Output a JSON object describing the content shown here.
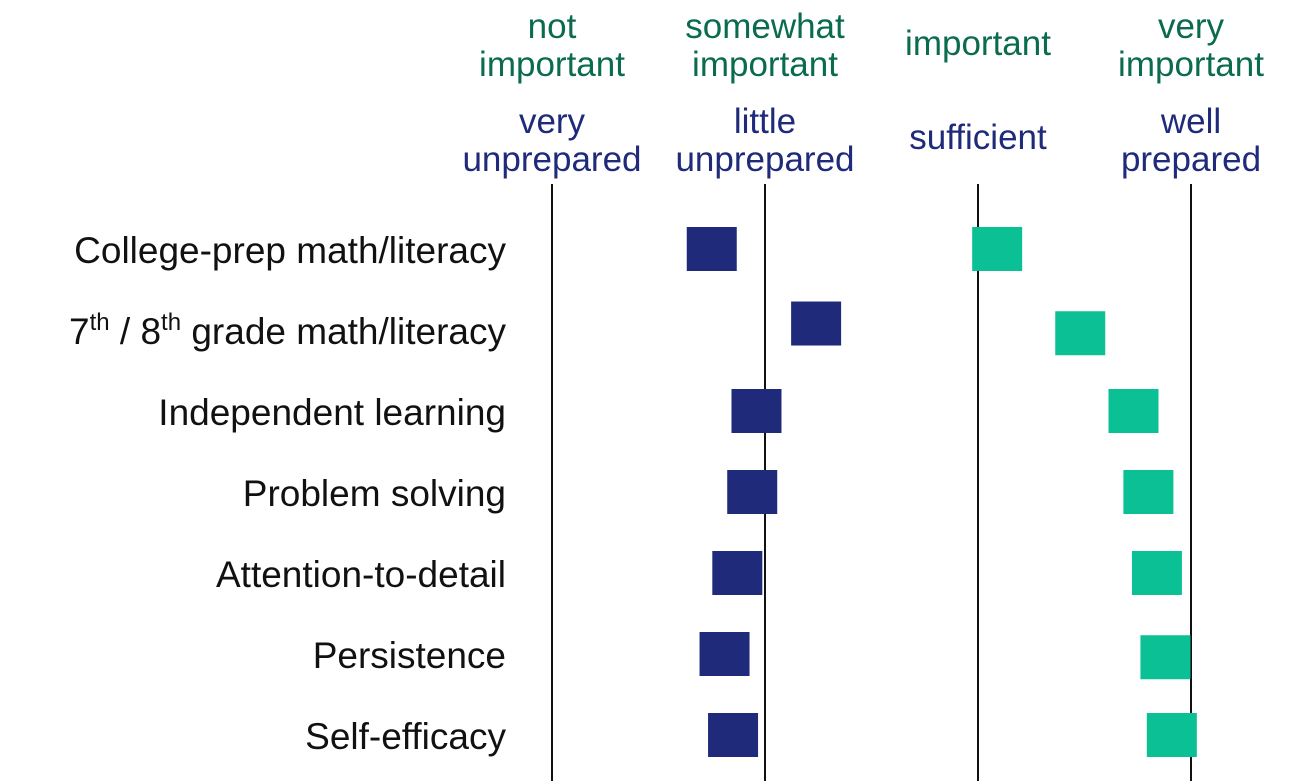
{
  "chart_data": {
    "type": "scatter",
    "title": "",
    "xlabel": "",
    "ylabel": "",
    "xlim": [
      1,
      4
    ],
    "importance_scale": {
      "color": "#0b6b4f",
      "ticks": [
        {
          "value": 1,
          "lines": [
            "not",
            "important"
          ]
        },
        {
          "value": 2,
          "lines": [
            "somewhat",
            "important"
          ]
        },
        {
          "value": 3,
          "lines": [
            "important"
          ]
        },
        {
          "value": 4,
          "lines": [
            "very",
            "important"
          ]
        }
      ]
    },
    "preparedness_scale": {
      "color": "#1f2a7a",
      "ticks": [
        {
          "value": 1,
          "lines": [
            "very",
            "unprepared"
          ]
        },
        {
          "value": 2,
          "lines": [
            "little",
            "unprepared"
          ]
        },
        {
          "value": 3,
          "lines": [
            "sufficient"
          ]
        },
        {
          "value": 4,
          "lines": [
            "well",
            "prepared"
          ]
        }
      ]
    },
    "categories": [
      {
        "parts": [
          {
            "t": "College-prep math/literacy"
          }
        ]
      },
      {
        "parts": [
          {
            "t": "7"
          },
          {
            "t": "th",
            "sup": true
          },
          {
            "t": " / 8"
          },
          {
            "t": "th",
            "sup": true
          },
          {
            "t": " grade math/literacy"
          }
        ]
      },
      {
        "parts": [
          {
            "t": "Independent learning"
          }
        ]
      },
      {
        "parts": [
          {
            "t": "Problem solving"
          }
        ]
      },
      {
        "parts": [
          {
            "t": "Attention-to-detail"
          }
        ]
      },
      {
        "parts": [
          {
            "t": "Persistence"
          }
        ]
      },
      {
        "parts": [
          {
            "t": "Self-efficacy"
          }
        ]
      }
    ],
    "series": [
      {
        "color": "#1f2a7a",
        "values": [
          1.75,
          2.24,
          1.96,
          1.94,
          1.87,
          1.81,
          1.85
        ],
        "row_offsets": [
          0,
          -0.08,
          0,
          0,
          0,
          0,
          0
        ]
      },
      {
        "color": "#0bc095",
        "values": [
          3.09,
          3.48,
          3.73,
          3.8,
          3.84,
          3.88,
          3.91
        ],
        "row_offsets": [
          0,
          0.04,
          0,
          0,
          0,
          0.04,
          0
        ]
      }
    ]
  }
}
